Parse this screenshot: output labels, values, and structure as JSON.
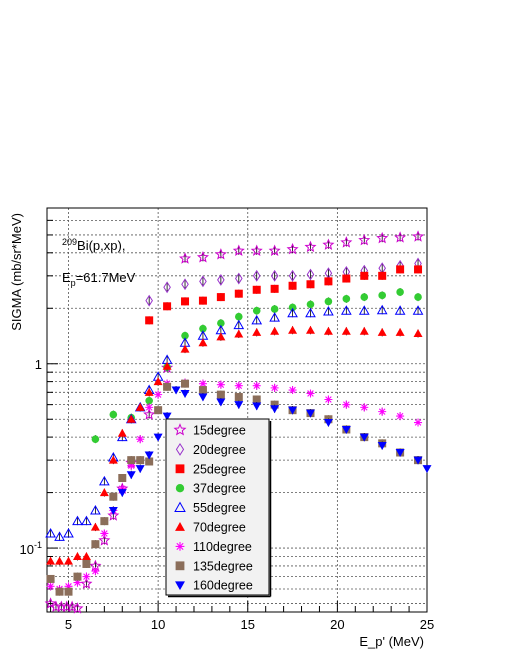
{
  "chart_data": {
    "type": "scatter",
    "title": "",
    "xlabel": "E_p'   (MeV)",
    "ylabel": "SIGMA   (mb/sr*MeV)",
    "xlim": [
      3.8,
      25
    ],
    "ylim": [
      0.045,
      7.0
    ],
    "ylog": true,
    "grid": true,
    "x_ticks": [
      "5",
      "10",
      "15",
      "20",
      "25"
    ],
    "y_ticks": [
      "10-1",
      "1"
    ],
    "annotations": {
      "target_sup": "209",
      "target": "Bi(p,xp),",
      "energy_main": "E",
      "energy_sub": "p",
      "energy_rest": "=61.7MeV"
    },
    "legend_position": "center-bottom",
    "series": [
      {
        "name": "15degree",
        "color": "#cc00cc",
        "marker": "open-star",
        "x": [
          4.0,
          4.3,
          4.6,
          4.9,
          5.2,
          5.5,
          6.0,
          6.5,
          7.0,
          7.5,
          8.0,
          8.5,
          9.5,
          10.5,
          11.5,
          12.5,
          13.5,
          14.5,
          15.5,
          16.5,
          17.5,
          18.5,
          19.5,
          20.5,
          21.5,
          22.5,
          23.5,
          24.5
        ],
        "y": [
          0.05,
          0.048,
          0.048,
          0.048,
          0.048,
          0.047,
          0.064,
          0.08,
          0.11,
          0.15,
          0.21,
          0.29,
          0.53,
          0.95,
          3.72,
          3.78,
          3.92,
          4.1,
          4.1,
          4.1,
          4.18,
          4.3,
          4.42,
          4.55,
          4.68,
          4.8,
          4.84,
          4.9
        ]
      },
      {
        "name": "20degree",
        "color": "#9933cc",
        "marker": "open-diamond",
        "x": [
          9.5,
          10.5,
          11.5,
          12.5,
          13.5,
          14.5,
          15.5,
          16.5,
          17.5,
          18.5,
          19.5,
          20.5,
          21.5,
          22.5,
          23.5,
          24.5
        ],
        "y": [
          2.2,
          2.6,
          2.7,
          2.8,
          2.85,
          2.9,
          3.0,
          3.0,
          3.0,
          3.05,
          3.1,
          3.15,
          3.2,
          3.3,
          3.4,
          3.5
        ]
      },
      {
        "name": "25degree",
        "color": "#ff0000",
        "marker": "filled-square",
        "x": [
          9.5,
          10.5,
          11.5,
          12.5,
          13.5,
          14.5,
          15.5,
          16.5,
          17.5,
          18.5,
          19.5,
          20.5,
          21.5,
          22.5,
          23.5,
          24.5
        ],
        "y": [
          1.72,
          2.05,
          2.18,
          2.2,
          2.3,
          2.4,
          2.52,
          2.55,
          2.65,
          2.7,
          2.8,
          2.9,
          3.0,
          3.0,
          3.25,
          3.25
        ]
      },
      {
        "name": "37degree",
        "color": "#33cc33",
        "marker": "filled-circle",
        "x": [
          6.5,
          7.5,
          8.5,
          9.5,
          10.5,
          11.5,
          12.5,
          13.5,
          14.5,
          15.5,
          16.5,
          17.5,
          18.5,
          19.5,
          20.5,
          21.5,
          22.5,
          23.5,
          24.5
        ],
        "y": [
          0.39,
          0.53,
          0.51,
          0.63,
          0.96,
          1.42,
          1.55,
          1.66,
          1.8,
          1.94,
          1.98,
          2.02,
          2.1,
          2.18,
          2.25,
          2.3,
          2.35,
          2.45,
          2.3
        ]
      },
      {
        "name": "55degree",
        "color": "#0000ff",
        "marker": "open-triangle",
        "x": [
          4.0,
          4.5,
          5.0,
          5.5,
          6.0,
          6.5,
          7.0,
          7.5,
          8.0,
          8.5,
          9.0,
          9.5,
          10.0,
          10.5,
          11.5,
          12.5,
          13.5,
          14.5,
          15.5,
          16.5,
          17.5,
          18.5,
          19.5,
          20.5,
          21.5,
          22.5,
          23.5,
          24.5
        ],
        "y": [
          0.12,
          0.115,
          0.12,
          0.14,
          0.14,
          0.16,
          0.23,
          0.31,
          0.4,
          0.5,
          0.58,
          0.72,
          0.85,
          1.05,
          1.3,
          1.42,
          1.52,
          1.62,
          1.72,
          1.78,
          1.88,
          1.88,
          1.92,
          1.94,
          1.94,
          1.95,
          1.94,
          1.94
        ]
      },
      {
        "name": "70degree",
        "color": "#ff0000",
        "marker": "filled-triangle",
        "x": [
          4.0,
          4.5,
          5.0,
          5.5,
          6.0,
          6.5,
          7.0,
          7.5,
          8.0,
          8.5,
          9.0,
          9.5,
          10.0,
          10.5,
          11.5,
          12.5,
          13.5,
          14.5,
          15.5,
          16.5,
          17.5,
          18.5,
          19.5,
          20.5,
          21.5,
          22.5,
          23.5,
          24.5
        ],
        "y": [
          0.085,
          0.085,
          0.085,
          0.09,
          0.09,
          0.13,
          0.2,
          0.3,
          0.42,
          0.5,
          0.58,
          0.7,
          0.8,
          0.97,
          1.2,
          1.3,
          1.4,
          1.45,
          1.48,
          1.5,
          1.52,
          1.52,
          1.5,
          1.5,
          1.5,
          1.48,
          1.48,
          1.46
        ]
      },
      {
        "name": "110degree",
        "color": "#ff00ff",
        "marker": "star-burst",
        "x": [
          4.0,
          4.5,
          5.0,
          5.5,
          6.0,
          6.5,
          7.0,
          7.5,
          8.0,
          8.5,
          9.0,
          9.5,
          10.0,
          10.5,
          11.5,
          12.5,
          13.5,
          14.5,
          15.5,
          16.5,
          17.5,
          18.5,
          19.5,
          20.5,
          21.5,
          22.5,
          23.5,
          24.5
        ],
        "y": [
          0.062,
          0.06,
          0.062,
          0.065,
          0.07,
          0.075,
          0.12,
          0.16,
          0.21,
          0.28,
          0.39,
          0.58,
          0.68,
          0.78,
          0.79,
          0.78,
          0.77,
          0.76,
          0.76,
          0.74,
          0.72,
          0.69,
          0.64,
          0.6,
          0.58,
          0.55,
          0.52,
          0.48
        ]
      },
      {
        "name": "135degree",
        "color": "#8b6e5a",
        "marker": "filled-square",
        "x": [
          4.0,
          4.5,
          5.0,
          5.5,
          6.0,
          6.5,
          7.0,
          7.5,
          8.0,
          8.5,
          9.0,
          9.5,
          10.0,
          10.5,
          11.5,
          12.5,
          13.5,
          14.5,
          15.5,
          16.5,
          17.5,
          18.5,
          19.5,
          20.5,
          21.5,
          22.5,
          23.5,
          24.5
        ],
        "y": [
          0.068,
          0.058,
          0.058,
          0.07,
          0.082,
          0.105,
          0.14,
          0.19,
          0.24,
          0.3,
          0.3,
          0.295,
          0.56,
          0.75,
          0.78,
          0.72,
          0.68,
          0.66,
          0.64,
          0.6,
          0.56,
          0.54,
          0.5,
          0.44,
          0.4,
          0.37,
          0.33,
          0.3
        ]
      },
      {
        "name": "160degree",
        "color": "#0000ff",
        "marker": "filled-triangle-down",
        "x": [
          7.5,
          8.0,
          8.5,
          9.0,
          9.5,
          10.0,
          10.5,
          11.0,
          11.5,
          12.5,
          13.5,
          14.5,
          15.5,
          16.5,
          17.5,
          18.5,
          19.5,
          20.5,
          21.5,
          22.5,
          23.5,
          24.5,
          25.0
        ],
        "y": [
          0.16,
          0.2,
          0.25,
          0.27,
          0.32,
          0.4,
          0.52,
          0.72,
          0.69,
          0.66,
          0.62,
          0.6,
          0.59,
          0.57,
          0.56,
          0.54,
          0.48,
          0.44,
          0.4,
          0.36,
          0.33,
          0.3,
          0.27
        ]
      }
    ]
  }
}
